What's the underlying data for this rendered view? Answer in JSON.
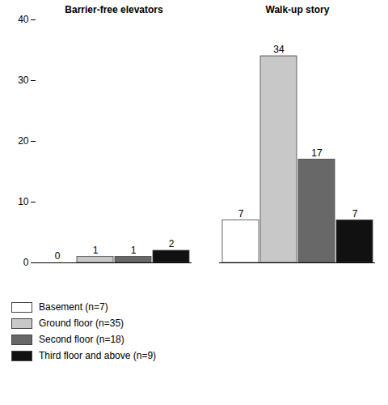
{
  "chart_data": {
    "type": "bar",
    "categories": [
      "Barrier-free elevators",
      "Walk-up story"
    ],
    "series": [
      {
        "name": "Basement (n=7)",
        "color": "#ffffff",
        "values": [
          0,
          7
        ]
      },
      {
        "name": "Ground floor (n=35)",
        "color": "#c8c8c8",
        "values": [
          1,
          34
        ]
      },
      {
        "name": "Second floor (n=18)",
        "color": "#686868",
        "values": [
          1,
          17
        ]
      },
      {
        "name": "Third floor and above (n=9)",
        "color": "#111111",
        "values": [
          2,
          7
        ]
      }
    ],
    "ylim": [
      0,
      40
    ],
    "yticks": [
      0,
      10,
      20,
      30,
      40
    ],
    "data_labels": true,
    "grid": false,
    "legend": "bottom"
  }
}
